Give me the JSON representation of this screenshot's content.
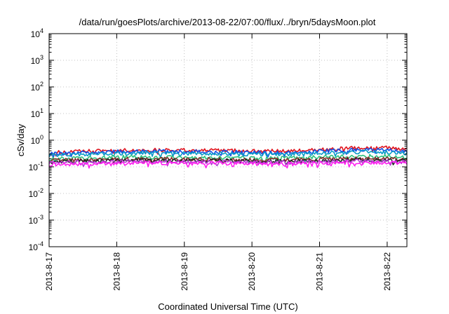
{
  "chart_data": {
    "type": "line",
    "title": "/data/run/goesPlots/archive/2013-08-22/07:00/flux/../bryn/5daysMoon.plot",
    "xlabel": "Coordinated Universal Time (UTC)",
    "ylabel": "cSv/day",
    "y_scale": "log",
    "ylim": [
      0.0001,
      10000
    ],
    "y_ticks": [
      {
        "base": "10",
        "exp": "-4",
        "value": 0.0001
      },
      {
        "base": "10",
        "exp": "-3",
        "value": 0.001
      },
      {
        "base": "10",
        "exp": "-2",
        "value": 0.01
      },
      {
        "base": "10",
        "exp": "-1",
        "value": 0.1
      },
      {
        "base": "10",
        "exp": "0",
        "value": 1
      },
      {
        "base": "10",
        "exp": "1",
        "value": 10
      },
      {
        "base": "10",
        "exp": "2",
        "value": 100
      },
      {
        "base": "10",
        "exp": "3",
        "value": 1000
      },
      {
        "base": "10",
        "exp": "4",
        "value": 10000
      }
    ],
    "xlim": [
      "2013-08-17T00:00",
      "2013-08-22T07:00"
    ],
    "x_ticks": [
      "2013-8-17",
      "2013-8-18",
      "2013-8-19",
      "2013-8-20",
      "2013-8-21",
      "2013-8-22"
    ],
    "grid": true,
    "x_sample_times": [
      "2013-08-17T00:00",
      "2013-08-17T12:00",
      "2013-08-18T00:00",
      "2013-08-18T12:00",
      "2013-08-19T00:00",
      "2013-08-19T12:00",
      "2013-08-20T00:00",
      "2013-08-20T12:00",
      "2013-08-21T00:00",
      "2013-08-21T12:00",
      "2013-08-22T00:00",
      "2013-08-22T07:00"
    ],
    "series": [
      {
        "color": "#e0141e",
        "values": [
          0.34,
          0.38,
          0.42,
          0.43,
          0.42,
          0.41,
          0.4,
          0.38,
          0.44,
          0.5,
          0.52,
          0.43
        ]
      },
      {
        "color": "#1450e6",
        "values": [
          0.3,
          0.34,
          0.37,
          0.38,
          0.37,
          0.36,
          0.35,
          0.33,
          0.38,
          0.44,
          0.45,
          0.36
        ]
      },
      {
        "color": "#0a9bc8",
        "values": [
          0.27,
          0.3,
          0.32,
          0.33,
          0.32,
          0.31,
          0.3,
          0.29,
          0.33,
          0.36,
          0.37,
          0.31
        ]
      },
      {
        "color": "#2ec27e",
        "values": [
          0.2,
          0.21,
          0.23,
          0.23,
          0.22,
          0.22,
          0.21,
          0.21,
          0.23,
          0.25,
          0.25,
          0.22
        ]
      },
      {
        "color": "#8a2c2c",
        "values": [
          0.17,
          0.18,
          0.19,
          0.2,
          0.19,
          0.19,
          0.18,
          0.18,
          0.19,
          0.2,
          0.2,
          0.18
        ]
      },
      {
        "color": "#222222",
        "values": [
          0.155,
          0.16,
          0.17,
          0.175,
          0.17,
          0.17,
          0.165,
          0.16,
          0.17,
          0.18,
          0.18,
          0.165
        ]
      },
      {
        "color": "#b43cd2",
        "values": [
          0.145,
          0.15,
          0.16,
          0.16,
          0.155,
          0.155,
          0.15,
          0.145,
          0.155,
          0.165,
          0.165,
          0.15
        ]
      },
      {
        "color": "#ff1ef0",
        "values": [
          0.125,
          0.13,
          0.135,
          0.14,
          0.135,
          0.135,
          0.13,
          0.125,
          0.135,
          0.145,
          0.145,
          0.13
        ]
      }
    ]
  }
}
